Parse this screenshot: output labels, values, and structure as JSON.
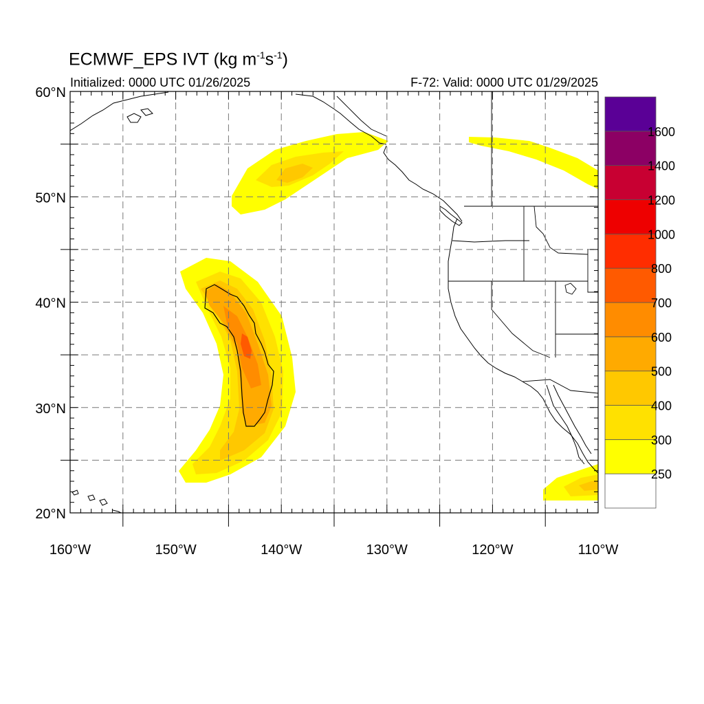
{
  "header": {
    "title_main": "ECMWF_EPS IVT (kg m",
    "title_exp1": "-1",
    "title_mid": "s",
    "title_exp2": "-1",
    "title_end": ")",
    "initialized": "Initialized: 0000 UTC 01/26/2025",
    "valid": "F-72: Valid: 0000 UTC 01/29/2025"
  },
  "map": {
    "lon_range": [
      -160,
      -110
    ],
    "lat_range": [
      20,
      60
    ],
    "lon_labels": [
      "160°W",
      "150°W",
      "140°W",
      "130°W",
      "120°W",
      "110°W"
    ],
    "lat_labels": [
      "20°N",
      "30°N",
      "40°N",
      "50°N",
      "60°N"
    ],
    "grid_lons": [
      -155,
      -150,
      -145,
      -140,
      -135,
      -130,
      -125,
      -120,
      -115
    ],
    "grid_lats": [
      25,
      30,
      35,
      40,
      45,
      50,
      55
    ]
  },
  "colorbar": {
    "labels": [
      "250",
      "300",
      "400",
      "500",
      "600",
      "700",
      "800",
      "1000",
      "1200",
      "1400",
      "1600"
    ],
    "colors": [
      "#ffffff",
      "#ffff00",
      "#ffe100",
      "#ffc800",
      "#ffaa00",
      "#ff8c00",
      "#ff5a00",
      "#ff2d00",
      "#ee0000",
      "#c80032",
      "#8c0064",
      "#5a0096"
    ]
  },
  "ivt_features": [
    {
      "name": "atmospheric-river-main",
      "peak_ivt": 700,
      "lon_center": -143,
      "lat_center": 35
    },
    {
      "name": "gulf-of-alaska-plume",
      "peak_ivt": 400,
      "lon_center": -139,
      "lat_center": 53
    },
    {
      "name": "canada-plume",
      "peak_ivt": 300,
      "lon_center": -115,
      "lat_center": 53.5
    },
    {
      "name": "mexico-plume",
      "peak_ivt": 400,
      "lon_center": -112,
      "lat_center": 22.5
    }
  ]
}
